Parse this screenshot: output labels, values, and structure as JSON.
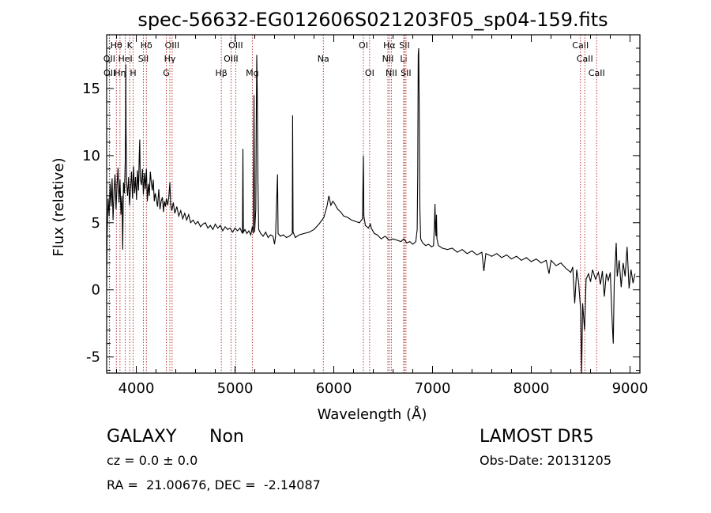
{
  "chart_data": {
    "type": "line",
    "title": "spec-56632-EG012606S021203F05_sp04-159.fits",
    "xlabel": "Wavelength (Å)",
    "ylabel": "Flux (relative)",
    "xlim": [
      3700,
      9100
    ],
    "ylim": [
      -6.2,
      19.0
    ],
    "xticks": [
      4000,
      5000,
      6000,
      7000,
      8000,
      9000
    ],
    "yticks": [
      -5,
      0,
      5,
      10,
      15
    ],
    "grid": false,
    "line_color": "#000000",
    "marker_color": "#b22222",
    "series": [
      {
        "values": [
          [
            3700,
            0.3
          ],
          [
            3705,
            4.2
          ],
          [
            3715,
            6.8
          ],
          [
            3725,
            5.5
          ],
          [
            3735,
            7.9
          ],
          [
            3745,
            6.2
          ],
          [
            3755,
            8.3
          ],
          [
            3765,
            5.2
          ],
          [
            3775,
            7.4
          ],
          [
            3785,
            8.6
          ],
          [
            3795,
            6.0
          ],
          [
            3805,
            7.8
          ],
          [
            3815,
            9.1
          ],
          [
            3825,
            6.5
          ],
          [
            3835,
            8.2
          ],
          [
            3845,
            5.6
          ],
          [
            3855,
            7.0
          ],
          [
            3862,
            3.0
          ],
          [
            3870,
            8.0
          ],
          [
            3880,
            7.2
          ],
          [
            3888,
            9.5
          ],
          [
            3892,
            12.5
          ],
          [
            3894,
            16.8
          ],
          [
            3897,
            12.0
          ],
          [
            3902,
            8.0
          ],
          [
            3912,
            7.0
          ],
          [
            3922,
            8.4
          ],
          [
            3932,
            6.3
          ],
          [
            3942,
            7.6
          ],
          [
            3952,
            8.8
          ],
          [
            3962,
            6.8
          ],
          [
            3972,
            9.2
          ],
          [
            3982,
            7.2
          ],
          [
            3992,
            8.4
          ],
          [
            4002,
            6.7
          ],
          [
            4012,
            8.9
          ],
          [
            4022,
            7.4
          ],
          [
            4030,
            10.1
          ],
          [
            4035,
            11.2
          ],
          [
            4040,
            8.3
          ],
          [
            4052,
            7.8
          ],
          [
            4062,
            9.0
          ],
          [
            4072,
            7.1
          ],
          [
            4082,
            8.7
          ],
          [
            4092,
            7.5
          ],
          [
            4102,
            9.0
          ],
          [
            4112,
            6.6
          ],
          [
            4122,
            7.9
          ],
          [
            4132,
            7.0
          ],
          [
            4142,
            8.8
          ],
          [
            4152,
            8.0
          ],
          [
            4162,
            7.4
          ],
          [
            4172,
            8.2
          ],
          [
            4182,
            6.6
          ],
          [
            4192,
            7.2
          ],
          [
            4202,
            6.8
          ],
          [
            4215,
            6.2
          ],
          [
            4228,
            7.5
          ],
          [
            4240,
            6.0
          ],
          [
            4252,
            6.6
          ],
          [
            4265,
            6.9
          ],
          [
            4275,
            5.8
          ],
          [
            4285,
            6.6
          ],
          [
            4295,
            6.2
          ],
          [
            4305,
            6.8
          ],
          [
            4318,
            6.3
          ],
          [
            4330,
            7.0
          ],
          [
            4340,
            8.0
          ],
          [
            4348,
            6.4
          ],
          [
            4360,
            5.9
          ],
          [
            4375,
            6.5
          ],
          [
            4390,
            5.7
          ],
          [
            4410,
            6.2
          ],
          [
            4430,
            5.5
          ],
          [
            4450,
            5.9
          ],
          [
            4470,
            5.3
          ],
          [
            4490,
            5.7
          ],
          [
            4510,
            5.2
          ],
          [
            4530,
            5.6
          ],
          [
            4550,
            5.0
          ],
          [
            4575,
            5.2
          ],
          [
            4600,
            4.9
          ],
          [
            4625,
            5.1
          ],
          [
            4650,
            4.7
          ],
          [
            4675,
            4.9
          ],
          [
            4700,
            5.0
          ],
          [
            4725,
            4.6
          ],
          [
            4750,
            4.8
          ],
          [
            4775,
            4.5
          ],
          [
            4800,
            4.9
          ],
          [
            4825,
            4.6
          ],
          [
            4850,
            4.8
          ],
          [
            4875,
            4.4
          ],
          [
            4900,
            4.7
          ],
          [
            4925,
            4.5
          ],
          [
            4950,
            4.6
          ],
          [
            4975,
            4.3
          ],
          [
            5000,
            4.6
          ],
          [
            5025,
            4.4
          ],
          [
            5050,
            4.6
          ],
          [
            5075,
            4.2
          ],
          [
            5080,
            10.5
          ],
          [
            5085,
            4.3
          ],
          [
            5100,
            4.5
          ],
          [
            5120,
            4.2
          ],
          [
            5140,
            4.4
          ],
          [
            5160,
            4.1
          ],
          [
            5175,
            4.7
          ],
          [
            5185,
            4.2
          ],
          [
            5192,
            14.5
          ],
          [
            5198,
            4.3
          ],
          [
            5210,
            6.0
          ],
          [
            5215,
            12.5
          ],
          [
            5220,
            17.5
          ],
          [
            5225,
            15.0
          ],
          [
            5232,
            8.0
          ],
          [
            5240,
            4.5
          ],
          [
            5260,
            4.2
          ],
          [
            5285,
            4.0
          ],
          [
            5310,
            4.3
          ],
          [
            5335,
            3.9
          ],
          [
            5360,
            4.1
          ],
          [
            5385,
            4.0
          ],
          [
            5400,
            3.4
          ],
          [
            5410,
            4.0
          ],
          [
            5430,
            8.6
          ],
          [
            5436,
            4.2
          ],
          [
            5460,
            4.0
          ],
          [
            5490,
            4.1
          ],
          [
            5520,
            3.9
          ],
          [
            5550,
            4.0
          ],
          [
            5580,
            4.2
          ],
          [
            5583,
            13.0
          ],
          [
            5588,
            4.3
          ],
          [
            5610,
            3.9
          ],
          [
            5650,
            4.1
          ],
          [
            5700,
            4.2
          ],
          [
            5750,
            4.3
          ],
          [
            5800,
            4.5
          ],
          [
            5850,
            4.9
          ],
          [
            5900,
            5.4
          ],
          [
            5930,
            6.2
          ],
          [
            5950,
            7.0
          ],
          [
            5970,
            6.3
          ],
          [
            5990,
            6.6
          ],
          [
            6010,
            6.4
          ],
          [
            6040,
            6.0
          ],
          [
            6070,
            5.8
          ],
          [
            6100,
            5.5
          ],
          [
            6140,
            5.4
          ],
          [
            6180,
            5.2
          ],
          [
            6220,
            5.1
          ],
          [
            6260,
            5.0
          ],
          [
            6290,
            5.3
          ],
          [
            6300,
            10.0
          ],
          [
            6305,
            5.5
          ],
          [
            6320,
            4.8
          ],
          [
            6350,
            4.6
          ],
          [
            6370,
            4.9
          ],
          [
            6380,
            4.6
          ],
          [
            6410,
            4.2
          ],
          [
            6440,
            4.1
          ],
          [
            6480,
            3.8
          ],
          [
            6520,
            4.0
          ],
          [
            6560,
            3.7
          ],
          [
            6600,
            3.8
          ],
          [
            6640,
            3.7
          ],
          [
            6680,
            3.6
          ],
          [
            6710,
            3.8
          ],
          [
            6740,
            3.5
          ],
          [
            6770,
            3.6
          ],
          [
            6800,
            3.4
          ],
          [
            6830,
            3.6
          ],
          [
            6845,
            4.5
          ],
          [
            6850,
            8.8
          ],
          [
            6855,
            17.5
          ],
          [
            6860,
            18.0
          ],
          [
            6865,
            14.0
          ],
          [
            6872,
            6.0
          ],
          [
            6880,
            3.8
          ],
          [
            6900,
            3.5
          ],
          [
            6930,
            3.3
          ],
          [
            6960,
            3.4
          ],
          [
            6990,
            3.2
          ],
          [
            7010,
            3.3
          ],
          [
            7020,
            5.0
          ],
          [
            7025,
            6.4
          ],
          [
            7030,
            4.5
          ],
          [
            7035,
            4.0
          ],
          [
            7040,
            5.6
          ],
          [
            7045,
            3.8
          ],
          [
            7060,
            3.3
          ],
          [
            7100,
            3.1
          ],
          [
            7150,
            3.0
          ],
          [
            7200,
            3.1
          ],
          [
            7250,
            2.8
          ],
          [
            7300,
            3.0
          ],
          [
            7350,
            2.7
          ],
          [
            7400,
            2.9
          ],
          [
            7450,
            2.6
          ],
          [
            7500,
            2.8
          ],
          [
            7520,
            1.4
          ],
          [
            7540,
            2.7
          ],
          [
            7600,
            2.5
          ],
          [
            7650,
            2.7
          ],
          [
            7700,
            2.4
          ],
          [
            7750,
            2.6
          ],
          [
            7800,
            2.3
          ],
          [
            7850,
            2.5
          ],
          [
            7900,
            2.2
          ],
          [
            7950,
            2.4
          ],
          [
            8000,
            2.1
          ],
          [
            8050,
            2.3
          ],
          [
            8100,
            2.0
          ],
          [
            8150,
            2.2
          ],
          [
            8180,
            1.2
          ],
          [
            8200,
            2.2
          ],
          [
            8250,
            1.8
          ],
          [
            8300,
            2.0
          ],
          [
            8350,
            1.6
          ],
          [
            8400,
            1.3
          ],
          [
            8420,
            1.7
          ],
          [
            8440,
            -1.0
          ],
          [
            8460,
            1.5
          ],
          [
            8480,
            0.5
          ],
          [
            8500,
            -1.5
          ],
          [
            8510,
            -6.2
          ],
          [
            8520,
            -1.0
          ],
          [
            8540,
            -3.0
          ],
          [
            8555,
            0.8
          ],
          [
            8580,
            1.2
          ],
          [
            8600,
            0.6
          ],
          [
            8620,
            1.5
          ],
          [
            8650,
            0.8
          ],
          [
            8680,
            1.3
          ],
          [
            8700,
            0.4
          ],
          [
            8720,
            1.4
          ],
          [
            8740,
            -0.5
          ],
          [
            8760,
            1.2
          ],
          [
            8780,
            0.7
          ],
          [
            8800,
            1.3
          ],
          [
            8820,
            -2.5
          ],
          [
            8830,
            -4.0
          ],
          [
            8840,
            0.5
          ],
          [
            8860,
            3.5
          ],
          [
            8870,
            1.0
          ],
          [
            8890,
            2.2
          ],
          [
            8910,
            0.2
          ],
          [
            8930,
            2.0
          ],
          [
            8950,
            1.0
          ],
          [
            8970,
            3.2
          ],
          [
            8990,
            0.1
          ],
          [
            9010,
            1.5
          ],
          [
            9030,
            0.5
          ],
          [
            9050,
            1.2
          ]
        ]
      }
    ],
    "markers": [
      {
        "label": "OII",
        "x": 3727,
        "row": 1
      },
      {
        "label": "OII",
        "x": 3729,
        "row": 2
      },
      {
        "label": "Hθ",
        "x": 3798,
        "row": 0
      },
      {
        "label": "Hη",
        "x": 3835,
        "row": 2
      },
      {
        "label": "HeI",
        "x": 3889,
        "row": 1
      },
      {
        "label": "K",
        "x": 3934,
        "row": 0
      },
      {
        "label": "H",
        "x": 3968,
        "row": 2
      },
      {
        "label": "Hδ",
        "x": 4102,
        "row": 0
      },
      {
        "label": "SII",
        "x": 4072,
        "row": 1
      },
      {
        "label": "OIII",
        "x": 4363,
        "row": 0
      },
      {
        "label": "Hγ",
        "x": 4340,
        "row": 1
      },
      {
        "label": "G",
        "x": 4304,
        "row": 2
      },
      {
        "label": "Hβ",
        "x": 4861,
        "row": 2
      },
      {
        "label": "OIII",
        "x": 5007,
        "row": 0
      },
      {
        "label": "OIII",
        "x": 4959,
        "row": 1
      },
      {
        "label": "Mg",
        "x": 5175,
        "row": 2
      },
      {
        "label": "Na",
        "x": 5894,
        "row": 1
      },
      {
        "label": "OI",
        "x": 6300,
        "row": 0
      },
      {
        "label": "OI",
        "x": 6363,
        "row": 2
      },
      {
        "label": "Hα",
        "x": 6563,
        "row": 0
      },
      {
        "label": "NII",
        "x": 6548,
        "row": 1
      },
      {
        "label": "NII",
        "x": 6583,
        "row": 2
      },
      {
        "label": "SII",
        "x": 6716,
        "row": 0
      },
      {
        "label": "Li",
        "x": 6708,
        "row": 1
      },
      {
        "label": "SII",
        "x": 6731,
        "row": 2
      },
      {
        "label": "CaII",
        "x": 8498,
        "row": 0
      },
      {
        "label": "CaII",
        "x": 8542,
        "row": 1
      },
      {
        "label": "CaII",
        "x": 8662,
        "row": 2
      }
    ]
  },
  "info": {
    "object_class": "GALAXY",
    "subclass": "Non",
    "cz_text": "cz = 0.0 ± 0.0",
    "coords_text": "RA =  21.00676, DEC =  -2.14087",
    "survey": "LAMOST DR5",
    "obs_date": "Obs-Date: 20131205"
  }
}
